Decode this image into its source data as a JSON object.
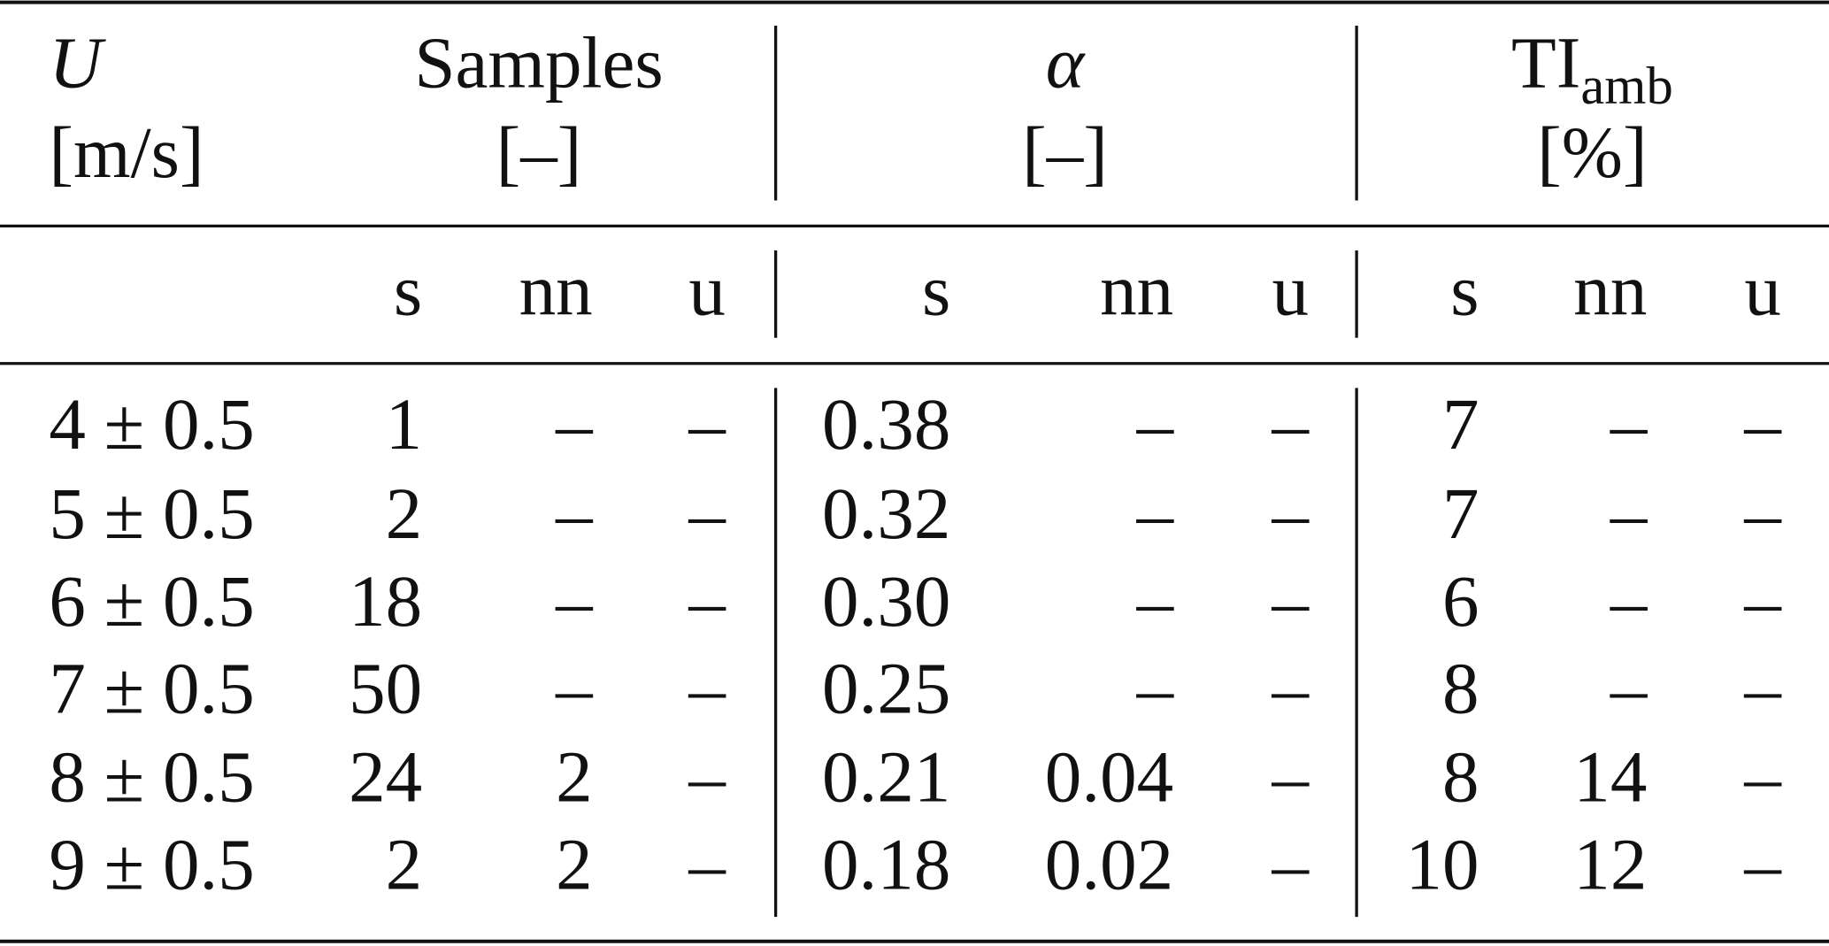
{
  "header": {
    "columns": [
      {
        "symbol": "U",
        "unit": "[m/s]"
      },
      {
        "symbol": "Samples",
        "unit": "[–]"
      },
      {
        "symbol": "α",
        "unit": "[–]"
      },
      {
        "symbol": "TI",
        "subscript": "amb",
        "unit": "[%]"
      }
    ],
    "subcolumns": [
      [
        "s",
        "nn",
        "u"
      ],
      [
        "s",
        "nn",
        "u"
      ],
      [
        "s",
        "nn",
        "u"
      ]
    ]
  },
  "table": {
    "rows": [
      [
        "4 ± 0.5",
        "1",
        "–",
        "–",
        "0.38",
        "–",
        "–",
        "7",
        "–",
        "–"
      ],
      [
        "5 ± 0.5",
        "2",
        "–",
        "–",
        "0.32",
        "–",
        "–",
        "7",
        "–",
        "–"
      ],
      [
        "6 ± 0.5",
        "18",
        "–",
        "–",
        "0.30",
        "–",
        "–",
        "6",
        "–",
        "–"
      ],
      [
        "7 ± 0.5",
        "50",
        "–",
        "–",
        "0.25",
        "–",
        "–",
        "8",
        "–",
        "–"
      ],
      [
        "8 ± 0.5",
        "24",
        "2",
        "–",
        "0.21",
        "0.04",
        "–",
        "8",
        "14",
        "–"
      ],
      [
        "9 ± 0.5",
        "2",
        "2",
        "–",
        "0.18",
        "0.02",
        "–",
        "10",
        "12",
        "–"
      ]
    ]
  }
}
